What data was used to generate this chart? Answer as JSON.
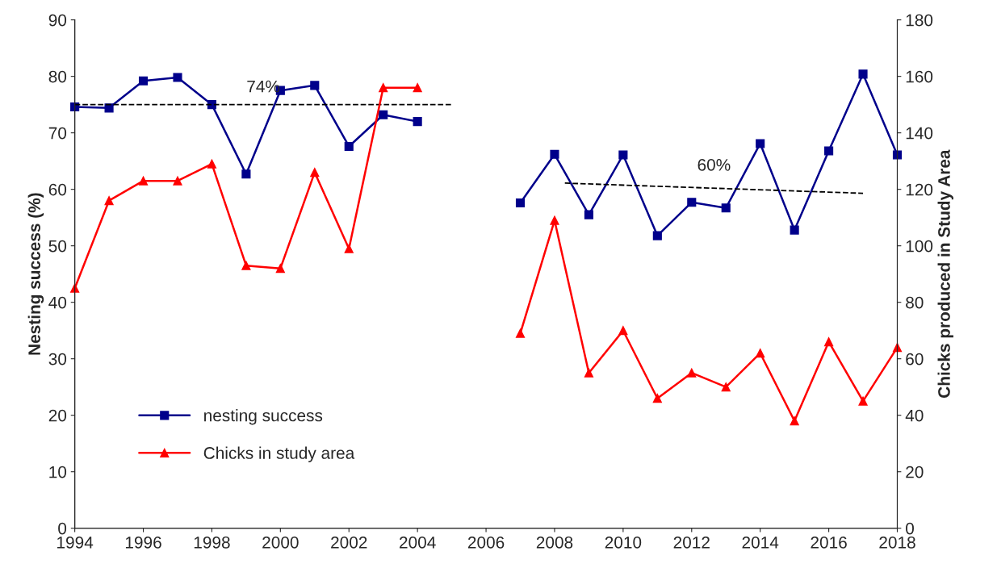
{
  "chart_data": {
    "type": "line",
    "ylabel": "Nesting success (%)",
    "y2label": "Chicks produced in Study Area",
    "x": [
      1994,
      1995,
      1996,
      1997,
      1998,
      1999,
      2000,
      2001,
      2002,
      2003,
      2004,
      2005,
      2006,
      2007,
      2008,
      2009,
      2010,
      2011,
      2012,
      2013,
      2014,
      2015,
      2016,
      2017,
      2018
    ],
    "series": [
      {
        "name": "nesting success",
        "color": "#00008b",
        "marker": "square",
        "values": [
          74.6,
          74.4,
          79.2,
          79.8,
          75.0,
          62.7,
          77.5,
          78.4,
          67.6,
          73.2,
          72.0,
          null,
          null,
          57.6,
          66.2,
          55.5,
          66.1,
          51.8,
          57.7,
          56.7,
          68.1,
          52.8,
          66.8,
          80.4,
          66.1
        ]
      },
      {
        "name": "Chicks in study area",
        "color": "#ff0000",
        "marker": "triangle",
        "axis": "y2",
        "values": [
          85,
          116,
          123,
          123,
          129,
          93,
          92,
          126,
          99,
          156,
          156,
          null,
          null,
          69,
          109,
          55,
          70,
          46,
          55,
          50,
          62,
          38,
          66,
          45,
          64
        ]
      },
      {
        "type": "line",
        "color": "#000000",
        "line_style": "dashed",
        "marker": "none",
        "x": [
          1994,
          2005
        ],
        "values": [
          75.0,
          75.0
        ]
      },
      {
        "type": "line",
        "color": "#000000",
        "line_style": "dashed",
        "marker": "none",
        "x": [
          2008.3,
          2017
        ],
        "values": [
          61.1,
          59.3
        ]
      }
    ],
    "annotations": [
      "74%",
      "60%"
    ],
    "xlim": [
      1994,
      2018
    ],
    "xticks": [
      1994,
      1996,
      1998,
      2000,
      2002,
      2004,
      2006,
      2008,
      2010,
      2012,
      2014,
      2016,
      2018
    ],
    "ylim": [
      0,
      90
    ],
    "yticks": [
      0,
      10,
      20,
      30,
      40,
      50,
      60,
      70,
      80,
      90
    ],
    "y2lim": [
      0,
      180
    ],
    "y2ticks": [
      0,
      20,
      40,
      60,
      80,
      100,
      120,
      140,
      160,
      180
    ],
    "grid": false,
    "legend": "bottom left"
  }
}
